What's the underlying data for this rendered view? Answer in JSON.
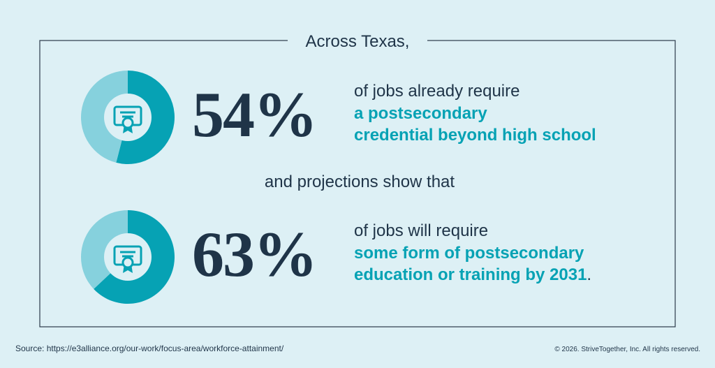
{
  "header": {
    "title": "Across Texas,"
  },
  "chart_data": [
    {
      "type": "pie",
      "values": [
        54,
        46
      ],
      "value_labels": [
        "54%",
        null
      ],
      "colors": [
        "#06a2b4",
        "#86d1dd"
      ]
    },
    {
      "type": "pie",
      "values": [
        63,
        37
      ],
      "value_labels": [
        "63%",
        null
      ],
      "colors": [
        "#06a2b4",
        "#86d1dd"
      ]
    }
  ],
  "statements": [
    {
      "lead": "of jobs already require",
      "highlight": [
        "a postsecondary",
        "credential beyond high school"
      ]
    },
    {
      "lead": "of jobs will require",
      "highlight": [
        "some form of postsecondary",
        "education or training by 2031"
      ],
      "end": "."
    }
  ],
  "connector": "and projections show that",
  "footer": {
    "source": "Source: https://e3alliance.org/our-work/focus-area/workforce-attainment/",
    "copyright": "© 2026. StriveTogether, Inc. All rights reserved."
  }
}
